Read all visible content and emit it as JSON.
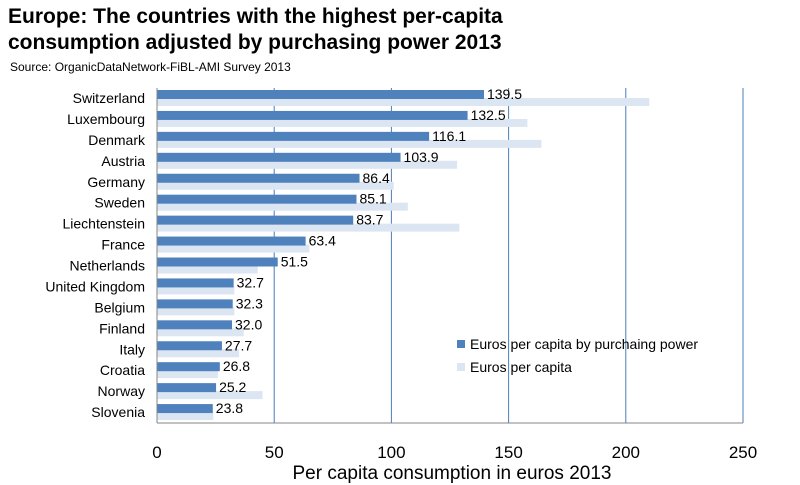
{
  "title_line1": "Europe: The countries with the highest per-capita",
  "title_line2": "consumption adjusted by purchasing power 2013",
  "source": "Source: OrganicDataNetwork-FiBL-AMI Survey 2013",
  "chart_data": {
    "type": "bar",
    "orientation": "horizontal",
    "title": "Europe: The countries with the highest per-capita consumption adjusted by purchasing power 2013",
    "xlabel": "Per capita consumption in euros 2013",
    "ylabel": "",
    "xlim": [
      0,
      250
    ],
    "xticks": [
      0,
      50,
      100,
      150,
      200,
      250
    ],
    "grid": "vertical",
    "legend_position": "right",
    "categories": [
      "Switzerland",
      "Luxembourg",
      "Denmark",
      "Austria",
      "Germany",
      "Sweden",
      "Liechtenstein",
      "France",
      "Netherlands",
      "United Kingdom",
      "Belgium",
      "Finland",
      "Italy",
      "Croatia",
      "Norway",
      "Slovenia"
    ],
    "series": [
      {
        "name": "Euros per capita by purchaing power",
        "color": "#4f81bd",
        "values": [
          139.5,
          132.5,
          116.1,
          103.9,
          86.4,
          85.1,
          83.7,
          63.4,
          51.5,
          32.7,
          32.3,
          32.0,
          27.7,
          26.8,
          25.2,
          23.8
        ],
        "labels": [
          "139.5",
          "132.5",
          "116.1",
          "103.9",
          "86.4",
          "85.1",
          "83.7",
          "63.4",
          "51.5",
          "32.7",
          "32.3",
          "32.0",
          "27.7",
          "26.8",
          "25.2",
          "23.8"
        ]
      },
      {
        "name": "Euros per capita",
        "color": "#dce6f2",
        "values": [
          210,
          158,
          164,
          128,
          101,
          107,
          129,
          65,
          43,
          33,
          33,
          37,
          35,
          26,
          45,
          24
        ]
      }
    ]
  }
}
